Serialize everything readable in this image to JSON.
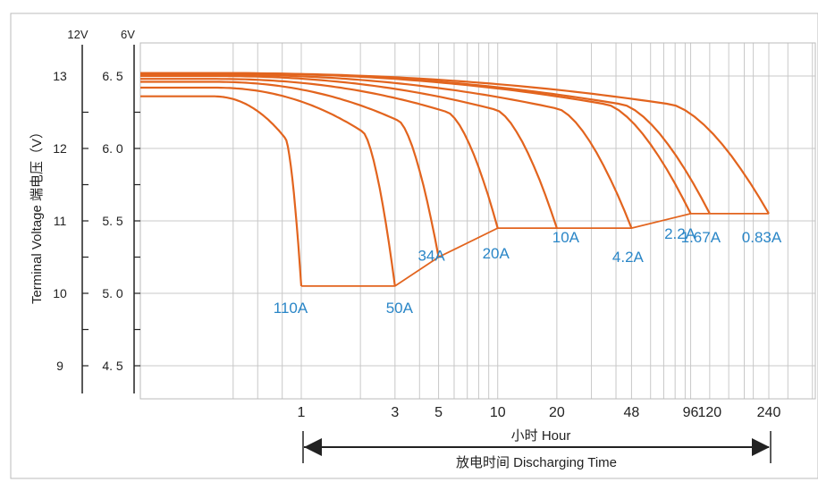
{
  "chart_data": {
    "type": "line",
    "y_title": "Terminal Voltage 端电压（V）",
    "y_unit_12v": "12V",
    "y_unit_6v": "6V",
    "y_ticks_12v": [
      "13",
      "12",
      "11",
      "10",
      "9"
    ],
    "y_ticks_12v_values": [
      13,
      12,
      11,
      10,
      9
    ],
    "y_ticks_6v": [
      "6. 5",
      "6. 0",
      "5. 5",
      "5. 0",
      "4. 5"
    ],
    "y_ticks_6v_values": [
      6.5,
      6.0,
      5.5,
      5.0,
      4.5
    ],
    "ylim_6v": [
      4.25,
      6.75
    ],
    "x_scale": "log",
    "x_ticks": [
      "1",
      "3",
      "5",
      "10",
      "20",
      "48",
      "96",
      "120",
      "240"
    ],
    "x_tick_values": [
      1,
      3,
      5,
      10,
      20,
      48,
      96,
      120,
      240
    ],
    "x_label": "小时 Hour",
    "time_label": "放电时间 Discharging Time",
    "series": [
      {
        "name": "110A",
        "start_v": 6.36,
        "end_h": 1,
        "end_v": 5.05
      },
      {
        "name": "50A",
        "start_v": 6.42,
        "end_h": 3,
        "end_v": 5.05
      },
      {
        "name": "34A",
        "start_v": 6.46,
        "end_h": 5,
        "end_v": 5.25
      },
      {
        "name": "20A",
        "start_v": 6.48,
        "end_h": 10,
        "end_v": 5.45
      },
      {
        "name": "10A",
        "start_v": 6.5,
        "end_h": 20,
        "end_v": 5.45
      },
      {
        "name": "4.2A",
        "start_v": 6.51,
        "end_h": 48,
        "end_v": 5.45
      },
      {
        "name": "2.2A",
        "start_v": 6.52,
        "end_h": 96,
        "end_v": 5.55
      },
      {
        "name": "1.67A",
        "start_v": 6.52,
        "end_h": 120,
        "end_v": 5.55
      },
      {
        "name": "0.83A",
        "start_v": 6.52,
        "end_h": 240,
        "end_v": 5.55
      }
    ],
    "colors": {
      "curve": "#e2641e",
      "label": "#2a86c7",
      "grid": "#c8c8c8",
      "axis": "#222222"
    }
  }
}
